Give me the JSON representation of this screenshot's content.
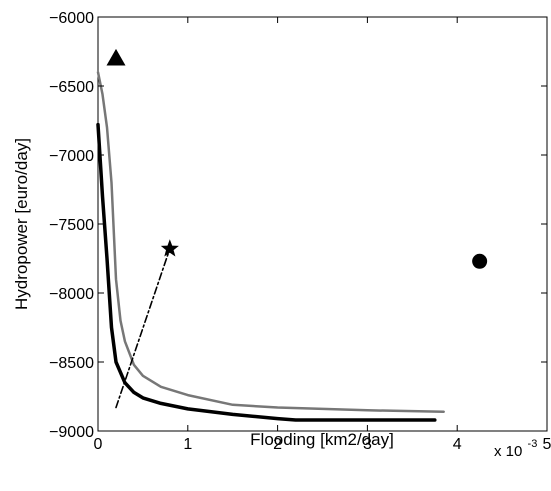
{
  "chart_data": {
    "type": "line",
    "xlabel": "Flooding [km2/day]",
    "ylabel": "Hydropower [euro/day]",
    "x_multiplier": "x 10",
    "x_multiplier_exp": "-3",
    "xlim": [
      0,
      5
    ],
    "ylim": [
      -9000,
      -6000
    ],
    "xticks": [
      0,
      1,
      2,
      3,
      4,
      5
    ],
    "yticks": [
      -9000,
      -8500,
      -8000,
      -7500,
      -7000,
      -6500,
      -6000
    ],
    "xtick_labels": [
      "0",
      "1",
      "2",
      "3",
      "4",
      "5"
    ],
    "ytick_labels": [
      "−9000",
      "−8500",
      "−8000",
      "−7500",
      "−7000",
      "−6500",
      "−6000"
    ],
    "grid": false,
    "series": [
      {
        "style": "solid",
        "color": "#777777",
        "points": [
          [
            0.0,
            -6400
          ],
          [
            0.05,
            -6560
          ],
          [
            0.1,
            -6800
          ],
          [
            0.15,
            -7200
          ],
          [
            0.2,
            -7900
          ],
          [
            0.25,
            -8200
          ],
          [
            0.3,
            -8350
          ],
          [
            0.4,
            -8520
          ],
          [
            0.5,
            -8600
          ],
          [
            0.7,
            -8680
          ],
          [
            1.0,
            -8740
          ],
          [
            1.5,
            -8810
          ],
          [
            2.0,
            -8830
          ],
          [
            3.0,
            -8850
          ],
          [
            3.85,
            -8860
          ]
        ]
      },
      {
        "style": "solid-thick",
        "color": "#000000",
        "points": [
          [
            0.0,
            -6780
          ],
          [
            0.05,
            -7300
          ],
          [
            0.1,
            -7750
          ],
          [
            0.15,
            -8250
          ],
          [
            0.2,
            -8500
          ],
          [
            0.3,
            -8650
          ],
          [
            0.4,
            -8720
          ],
          [
            0.5,
            -8760
          ],
          [
            0.7,
            -8800
          ],
          [
            1.0,
            -8840
          ],
          [
            1.5,
            -8880
          ],
          [
            2.0,
            -8910
          ],
          [
            2.2,
            -8920
          ],
          [
            3.0,
            -8920
          ],
          [
            3.75,
            -8920
          ]
        ]
      },
      {
        "style": "dashdot",
        "color": "#000000",
        "points": [
          [
            0.2,
            -8830
          ],
          [
            0.8,
            -7680
          ]
        ]
      }
    ],
    "markers": [
      {
        "shape": "triangle",
        "x": 0.2,
        "y": -6300,
        "color": "#000000"
      },
      {
        "shape": "star",
        "x": 0.8,
        "y": -7680,
        "color": "#000000"
      },
      {
        "shape": "circle",
        "x": 4.25,
        "y": -7770,
        "color": "#000000"
      }
    ]
  }
}
